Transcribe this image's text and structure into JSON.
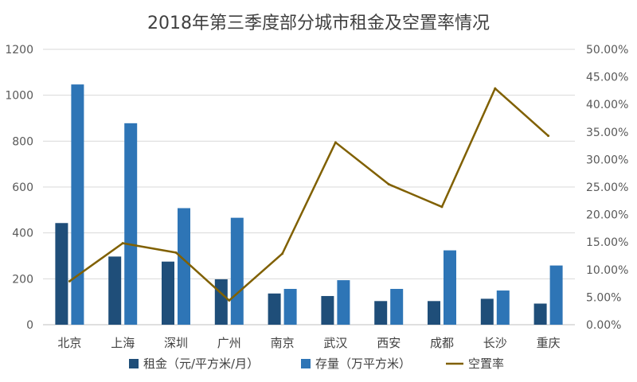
{
  "chart_data": {
    "type": "bar",
    "title": "2018年第三季度部分城市租金及空置率情况",
    "categories": [
      "北京",
      "上海",
      "深圳",
      "广州",
      "南京",
      "武汉",
      "西安",
      "成都",
      "长沙",
      "重庆"
    ],
    "series": [
      {
        "name": "租金（元/平方米/月）",
        "type": "bar",
        "axis": "left",
        "color": "#1F4E79",
        "values": [
          443,
          297,
          275,
          198,
          136,
          125,
          103,
          103,
          113,
          92
        ]
      },
      {
        "name": "存量（万平方米）",
        "type": "bar",
        "axis": "left",
        "color": "#2E75B6",
        "values": [
          1047,
          878,
          508,
          466,
          156,
          194,
          156,
          324,
          149,
          258
        ]
      },
      {
        "name": "空置率",
        "type": "line",
        "axis": "right",
        "color": "#806000",
        "values": [
          0.079,
          0.148,
          0.131,
          0.044,
          0.129,
          0.331,
          0.255,
          0.214,
          0.429,
          0.343
        ]
      }
    ],
    "y_left": {
      "min": 0,
      "max": 1200,
      "step": 200,
      "ticks": [
        "0",
        "200",
        "400",
        "600",
        "800",
        "1000",
        "1200"
      ]
    },
    "y_right": {
      "min": 0,
      "max": 0.5,
      "step": 0.05,
      "ticks": [
        "0.00%",
        "5.00%",
        "10.00%",
        "15.00%",
        "20.00%",
        "25.00%",
        "30.00%",
        "35.00%",
        "40.00%",
        "45.00%",
        "50.00%"
      ]
    },
    "grid": true,
    "legend_position": "bottom"
  }
}
